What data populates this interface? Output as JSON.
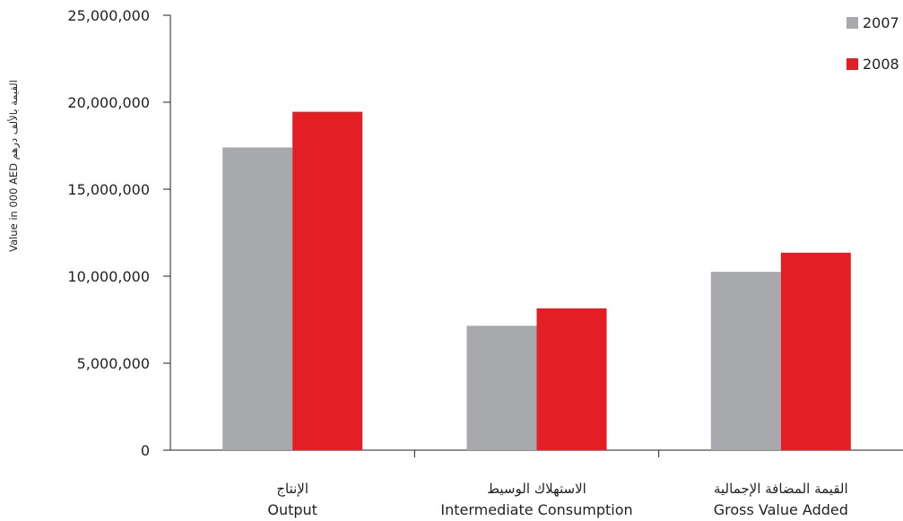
{
  "chart_data": {
    "type": "bar",
    "categories": [
      {
        "ar": "الإنتاج",
        "en": "Output"
      },
      {
        "ar": "الاستهلاك الوسيط",
        "en": "Intermediate Consumption"
      },
      {
        "ar": "القيمة المضافة الإجمالية",
        "en": "Gross Value Added"
      }
    ],
    "series": [
      {
        "name": "2007",
        "color": "#a7a9ac",
        "values": [
          17400000,
          7150000,
          10250000
        ]
      },
      {
        "name": "2008",
        "color": "#e31e24",
        "values": [
          19450000,
          8150000,
          11350000
        ]
      }
    ],
    "ylabel_en": "Value in 000 AED",
    "ylabel_ar": "القيمة بالألف درهم",
    "ylim": [
      0,
      25000000
    ],
    "yticks": [
      {
        "value": 0,
        "label": "0"
      },
      {
        "value": 5000000,
        "label": "5,000,000"
      },
      {
        "value": 10000000,
        "label": "10,000,000"
      },
      {
        "value": 15000000,
        "label": "15,000,000"
      },
      {
        "value": 20000000,
        "label": "20,000,000"
      },
      {
        "value": 25000000,
        "label": "25,000,000"
      }
    ],
    "grid": false,
    "legend_position": "top-right"
  }
}
